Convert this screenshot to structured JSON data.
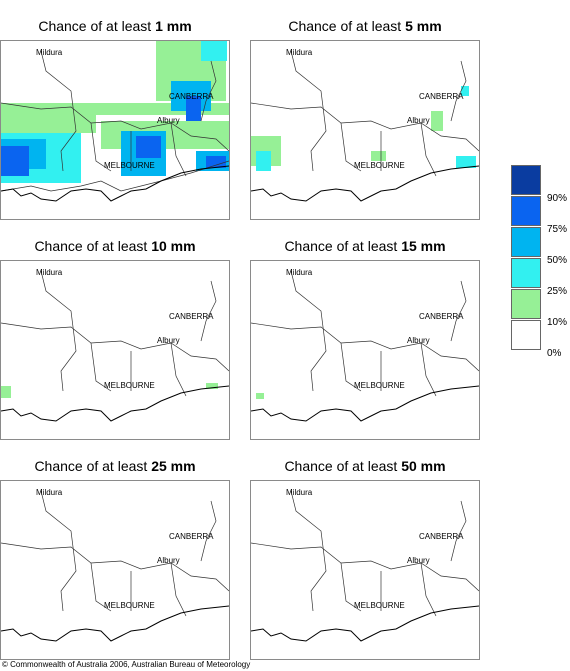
{
  "panels": [
    {
      "prefix": "Chance of at least ",
      "amount": "1 mm"
    },
    {
      "prefix": "Chance of at least ",
      "amount": "5 mm"
    },
    {
      "prefix": "Chance of at least ",
      "amount": "10 mm"
    },
    {
      "prefix": "Chance of at least ",
      "amount": "15 mm"
    },
    {
      "prefix": "Chance of at least ",
      "amount": "25 mm"
    },
    {
      "prefix": "Chance of at least ",
      "amount": "50 mm"
    }
  ],
  "cities": {
    "mildura": "Mildura",
    "canberra": "CANBERRA",
    "albury": "Albury",
    "melbourne": "MELBOURNE"
  },
  "legend": {
    "labels": [
      "90%",
      "75%",
      "50%",
      "25%",
      "10%",
      "0%"
    ],
    "colors": [
      "#0a3ca0",
      "#0a64f0",
      "#00b4f0",
      "#32f0f0",
      "#96f096",
      "#ffffff"
    ]
  },
  "footer": "© Commonwealth of Australia 2006, Australian Bureau of Meteorology"
}
